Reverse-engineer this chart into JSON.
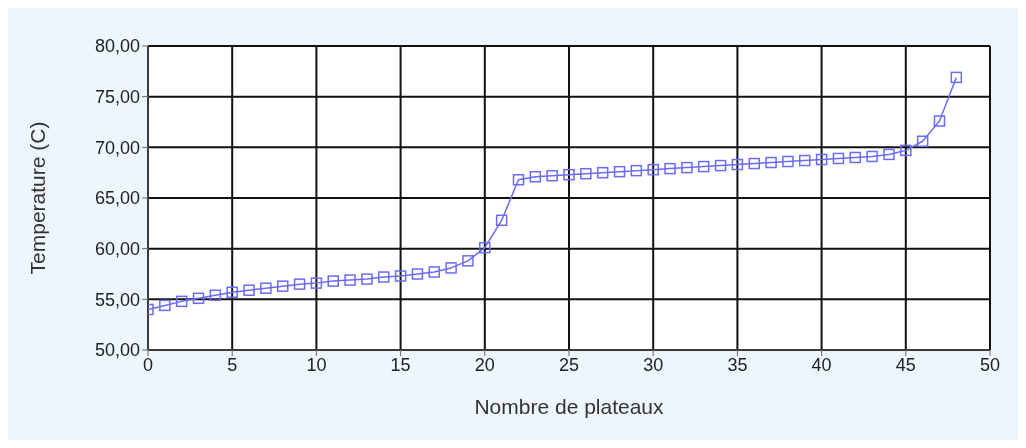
{
  "chart_data": {
    "type": "line",
    "xlabel": "Nombre de plateaux",
    "ylabel": "Temperature (C)",
    "x": [
      0,
      1,
      2,
      3,
      4,
      5,
      6,
      7,
      8,
      9,
      10,
      11,
      12,
      13,
      14,
      15,
      16,
      17,
      18,
      19,
      20,
      21,
      22,
      23,
      24,
      25,
      26,
      27,
      28,
      29,
      30,
      31,
      32,
      33,
      34,
      35,
      36,
      37,
      38,
      39,
      40,
      41,
      42,
      43,
      44,
      45,
      46,
      47,
      48
    ],
    "series": [
      {
        "color": "#6b6bf5",
        "values": [
          54.0,
          54.4,
          54.8,
          55.1,
          55.4,
          55.7,
          55.9,
          56.1,
          56.3,
          56.5,
          56.6,
          56.8,
          56.9,
          57.0,
          57.2,
          57.3,
          57.5,
          57.7,
          58.1,
          58.8,
          60.1,
          62.8,
          66.8,
          67.1,
          67.2,
          67.3,
          67.4,
          67.5,
          67.6,
          67.7,
          67.8,
          67.9,
          68.0,
          68.1,
          68.2,
          68.3,
          68.4,
          68.5,
          68.6,
          68.7,
          68.8,
          68.9,
          69.0,
          69.1,
          69.3,
          69.7,
          70.6,
          72.6,
          76.9
        ]
      }
    ],
    "xlim": [
      0,
      50
    ],
    "xticks": [
      0,
      5,
      10,
      15,
      20,
      25,
      30,
      35,
      40,
      45,
      50
    ],
    "ylim": [
      50,
      80
    ],
    "yticks": [
      {
        "value": 50,
        "label": "50,00"
      },
      {
        "value": 55,
        "label": "55,00"
      },
      {
        "value": 60,
        "label": "60,00"
      },
      {
        "value": 65,
        "label": "65,00"
      },
      {
        "value": 70,
        "label": "70,00"
      },
      {
        "value": 75,
        "label": "75,00"
      },
      {
        "value": 80,
        "label": "80,00"
      }
    ],
    "grid": true,
    "marker": "square",
    "line_style": "solid"
  }
}
